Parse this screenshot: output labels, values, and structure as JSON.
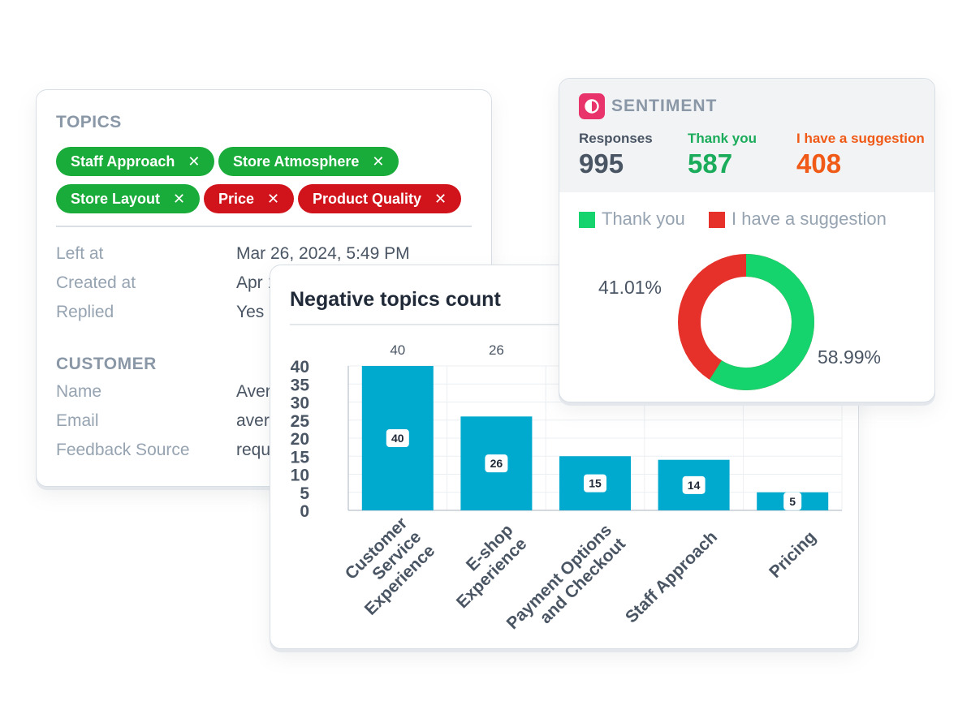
{
  "topics_card": {
    "topics_title": "TOPICS",
    "tags": [
      {
        "label": "Staff Approach",
        "color": "green"
      },
      {
        "label": "Store Atmosphere",
        "color": "green"
      },
      {
        "label": "Store Layout",
        "color": "green"
      },
      {
        "label": "Price",
        "color": "red"
      },
      {
        "label": "Product Quality",
        "color": "red"
      }
    ],
    "remove_glyph": "✕",
    "meta": [
      {
        "label": "Left at",
        "value": "Mar 26, 2024, 5:49 PM"
      },
      {
        "label": "Created at",
        "value": "Apr 1"
      },
      {
        "label": "Replied",
        "value": "Yes"
      }
    ],
    "customer_title": "CUSTOMER",
    "customer": [
      {
        "label": "Name",
        "value": "Aver"
      },
      {
        "label": "Email",
        "value": "aver"
      },
      {
        "label": "Feedback Source",
        "value": "requ"
      }
    ]
  },
  "sentiment": {
    "title": "SENTIMENT",
    "stats": [
      {
        "label": "Responses",
        "value": "995",
        "color": "#4a5564"
      },
      {
        "label": "Thank you",
        "value": "587",
        "color": "#1aac5a"
      },
      {
        "label": "I have a suggestion",
        "value": "408",
        "color": "#f05a16"
      }
    ],
    "legend": [
      {
        "label": "Thank you",
        "color": "#15d46e"
      },
      {
        "label": "I have a suggestion",
        "color": "#e5312a"
      }
    ],
    "pct_suggestion": "41.01%",
    "pct_thank": "58.99%",
    "accent": "#e8336b"
  },
  "chart_data": {
    "type": "bar",
    "title": "Negative topics count",
    "categories": [
      [
        "Customer",
        "Service",
        "Experience"
      ],
      [
        "E-shop",
        "Experience"
      ],
      [
        "Payment Options",
        "and Checkout"
      ],
      [
        "Staff Approach"
      ],
      [
        "Pricing"
      ]
    ],
    "values": [
      40,
      26,
      15,
      14,
      5
    ],
    "top_labels": [
      "40",
      "26",
      "",
      "",
      ""
    ],
    "yticks": [
      "40",
      "35",
      "30",
      "25",
      "20",
      "15",
      "10",
      "5",
      "0"
    ],
    "ylim": [
      0,
      40
    ],
    "bar_color": "#00aacf",
    "grid": true
  }
}
